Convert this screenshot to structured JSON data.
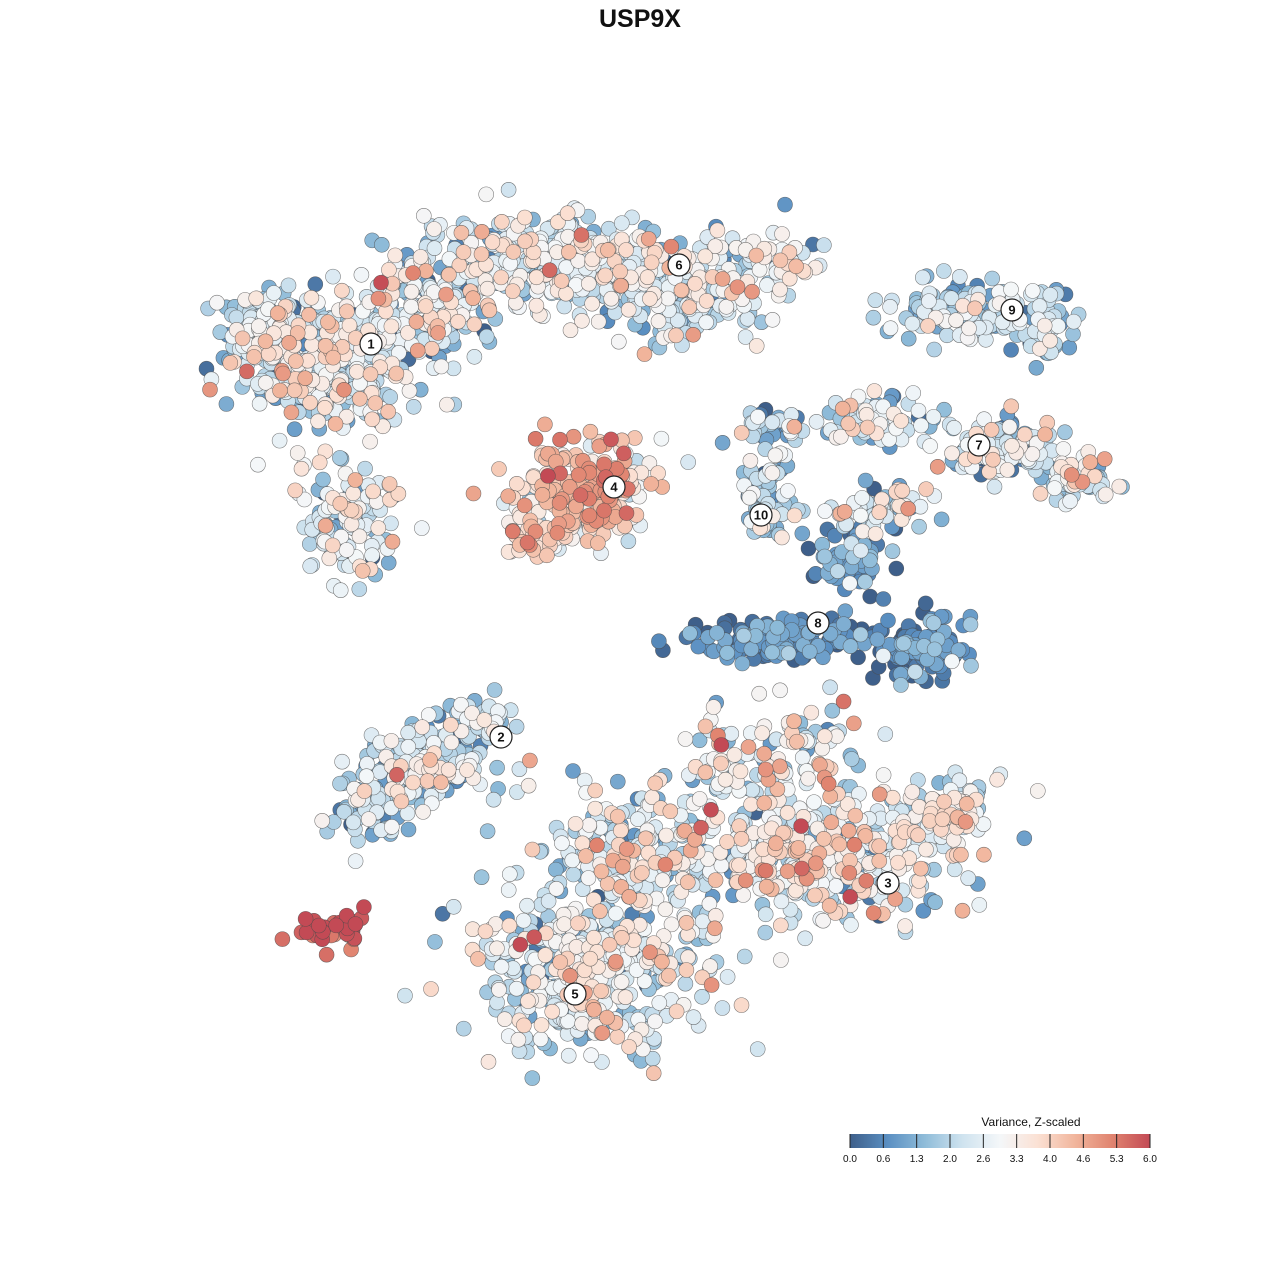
{
  "chart_data": {
    "type": "scatter",
    "title": "USP9X",
    "xlabel": "",
    "ylabel": "",
    "grid": false,
    "colorbar": {
      "title": "Variance, Z-scaled",
      "min": 0.0,
      "max": 6.0,
      "ticks": [
        "0.0",
        "0.6",
        "1.3",
        "2.0",
        "2.6",
        "3.3",
        "4.0",
        "4.6",
        "5.3",
        "6.0"
      ],
      "placement": "bottom-right",
      "colors": [
        "#3e5f8a",
        "#5a8fc2",
        "#8fbcd9",
        "#cfe3ef",
        "#f4f7f9",
        "#fbe1d4",
        "#f1b59c",
        "#e0836f",
        "#c34a55"
      ]
    },
    "clusters": [
      {
        "label": "1",
        "mean_z": 2.4
      },
      {
        "label": "2",
        "mean_z": 2.2
      },
      {
        "label": "3",
        "mean_z": 2.8
      },
      {
        "label": "4",
        "mean_z": 3.9
      },
      {
        "label": "5",
        "mean_z": 2.6
      },
      {
        "label": "6",
        "mean_z": 2.5
      },
      {
        "label": "7",
        "mean_z": 2.3
      },
      {
        "label": "8",
        "mean_z": 0.6
      },
      {
        "label": "9",
        "mean_z": 2.0
      },
      {
        "label": "10",
        "mean_z": 1.8
      },
      {
        "label": "",
        "mean_z": 5.7
      }
    ]
  }
}
